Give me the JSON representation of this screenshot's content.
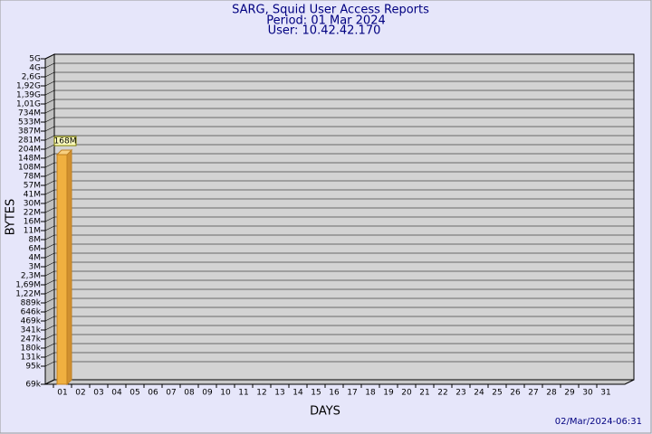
{
  "chart_data": {
    "type": "bar",
    "title": "SARG, Squid User Access Reports",
    "subtitle": [
      "Period: 01 Mar 2024",
      "User: 10.42.42.170"
    ],
    "xlabel": "DAYS",
    "ylabel": "BYTES",
    "footer": "02/Mar/2024-06:31",
    "color": "#f0b040",
    "yscale": "log",
    "categories": [
      "01",
      "02",
      "03",
      "04",
      "05",
      "06",
      "07",
      "08",
      "09",
      "10",
      "11",
      "12",
      "13",
      "14",
      "15",
      "16",
      "17",
      "18",
      "19",
      "20",
      "21",
      "22",
      "23",
      "24",
      "25",
      "26",
      "27",
      "28",
      "29",
      "30",
      "31"
    ],
    "values": [
      168000000,
      null,
      null,
      null,
      null,
      null,
      null,
      null,
      null,
      null,
      null,
      null,
      null,
      null,
      null,
      null,
      null,
      null,
      null,
      null,
      null,
      null,
      null,
      null,
      null,
      null,
      null,
      null,
      null,
      null,
      null
    ],
    "value_labels": [
      "168M",
      null,
      null,
      null,
      null,
      null,
      null,
      null,
      null,
      null,
      null,
      null,
      null,
      null,
      null,
      null,
      null,
      null,
      null,
      null,
      null,
      null,
      null,
      null,
      null,
      null,
      null,
      null,
      null,
      null,
      null
    ],
    "ylim": [
      69000,
      5000000000
    ],
    "yticks": [
      {
        "value": 69000,
        "label": "69k"
      },
      {
        "value": 95000,
        "label": "95k"
      },
      {
        "value": 131000,
        "label": "131k"
      },
      {
        "value": 180000,
        "label": "180k"
      },
      {
        "value": 247000,
        "label": "247k"
      },
      {
        "value": 341000,
        "label": "341k"
      },
      {
        "value": 469000,
        "label": "469k"
      },
      {
        "value": 646000,
        "label": "646k"
      },
      {
        "value": 889000,
        "label": "889k"
      },
      {
        "value": 1220000,
        "label": "1,22M"
      },
      {
        "value": 1690000,
        "label": "1,69M"
      },
      {
        "value": 2300000,
        "label": "2,3M"
      },
      {
        "value": 3000000,
        "label": "3M"
      },
      {
        "value": 4000000,
        "label": "4M"
      },
      {
        "value": 6000000,
        "label": "6M"
      },
      {
        "value": 8000000,
        "label": "8M"
      },
      {
        "value": 11000000,
        "label": "11M"
      },
      {
        "value": 16000000,
        "label": "16M"
      },
      {
        "value": 22000000,
        "label": "22M"
      },
      {
        "value": 30000000,
        "label": "30M"
      },
      {
        "value": 41000000,
        "label": "41M"
      },
      {
        "value": 57000000,
        "label": "57M"
      },
      {
        "value": 78000000,
        "label": "78M"
      },
      {
        "value": 108000000,
        "label": "108M"
      },
      {
        "value": 148000000,
        "label": "148M"
      },
      {
        "value": 204000000,
        "label": "204M"
      },
      {
        "value": 281000000,
        "label": "281M"
      },
      {
        "value": 387000000,
        "label": "387M"
      },
      {
        "value": 533000000,
        "label": "533M"
      },
      {
        "value": 734000000,
        "label": "734M"
      },
      {
        "value": 1010000000,
        "label": "1,01G"
      },
      {
        "value": 1390000000,
        "label": "1,39G"
      },
      {
        "value": 1920000000,
        "label": "1,92G"
      },
      {
        "value": 2600000000,
        "label": "2,6G"
      },
      {
        "value": 4000000000,
        "label": "4G"
      },
      {
        "value": 5000000000,
        "label": "5G"
      }
    ],
    "grid": true
  }
}
